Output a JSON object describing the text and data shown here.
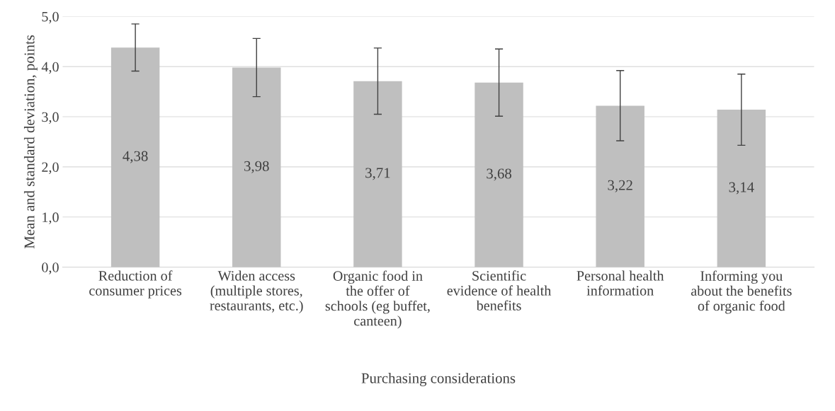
{
  "chart_data": {
    "type": "bar",
    "categories": [
      "Reduction of\nconsumer prices",
      "Widen access\n(multiple stores,\nrestaurants, etc.)",
      "Organic food in\nthe offer of\nschools (eg buffet,\ncanteen)",
      "Scientific\nevidence of health\nbenefits",
      "Personal health\ninformation",
      "Informing you\nabout the benefits\nof organic food"
    ],
    "values": [
      4.38,
      3.98,
      3.71,
      3.68,
      3.22,
      3.14
    ],
    "value_labels": [
      "4,38",
      "3,98",
      "3,71",
      "3,68",
      "3,22",
      "3,14"
    ],
    "errors": [
      0.47,
      0.58,
      0.66,
      0.67,
      0.7,
      0.71
    ],
    "color": "#bfbfbf",
    "xlabel": "Purchasing considerations",
    "ylabel": "Mean and standard deviation, points",
    "ylim": [
      0,
      5
    ],
    "yticks": [
      {
        "value": 0,
        "label": "0,0"
      },
      {
        "value": 1,
        "label": "1,0"
      },
      {
        "value": 2,
        "label": "2,0"
      },
      {
        "value": 3,
        "label": "3,0"
      },
      {
        "value": 4,
        "label": "4,0"
      },
      {
        "value": 5,
        "label": "5,0"
      }
    ],
    "grid": "y"
  }
}
